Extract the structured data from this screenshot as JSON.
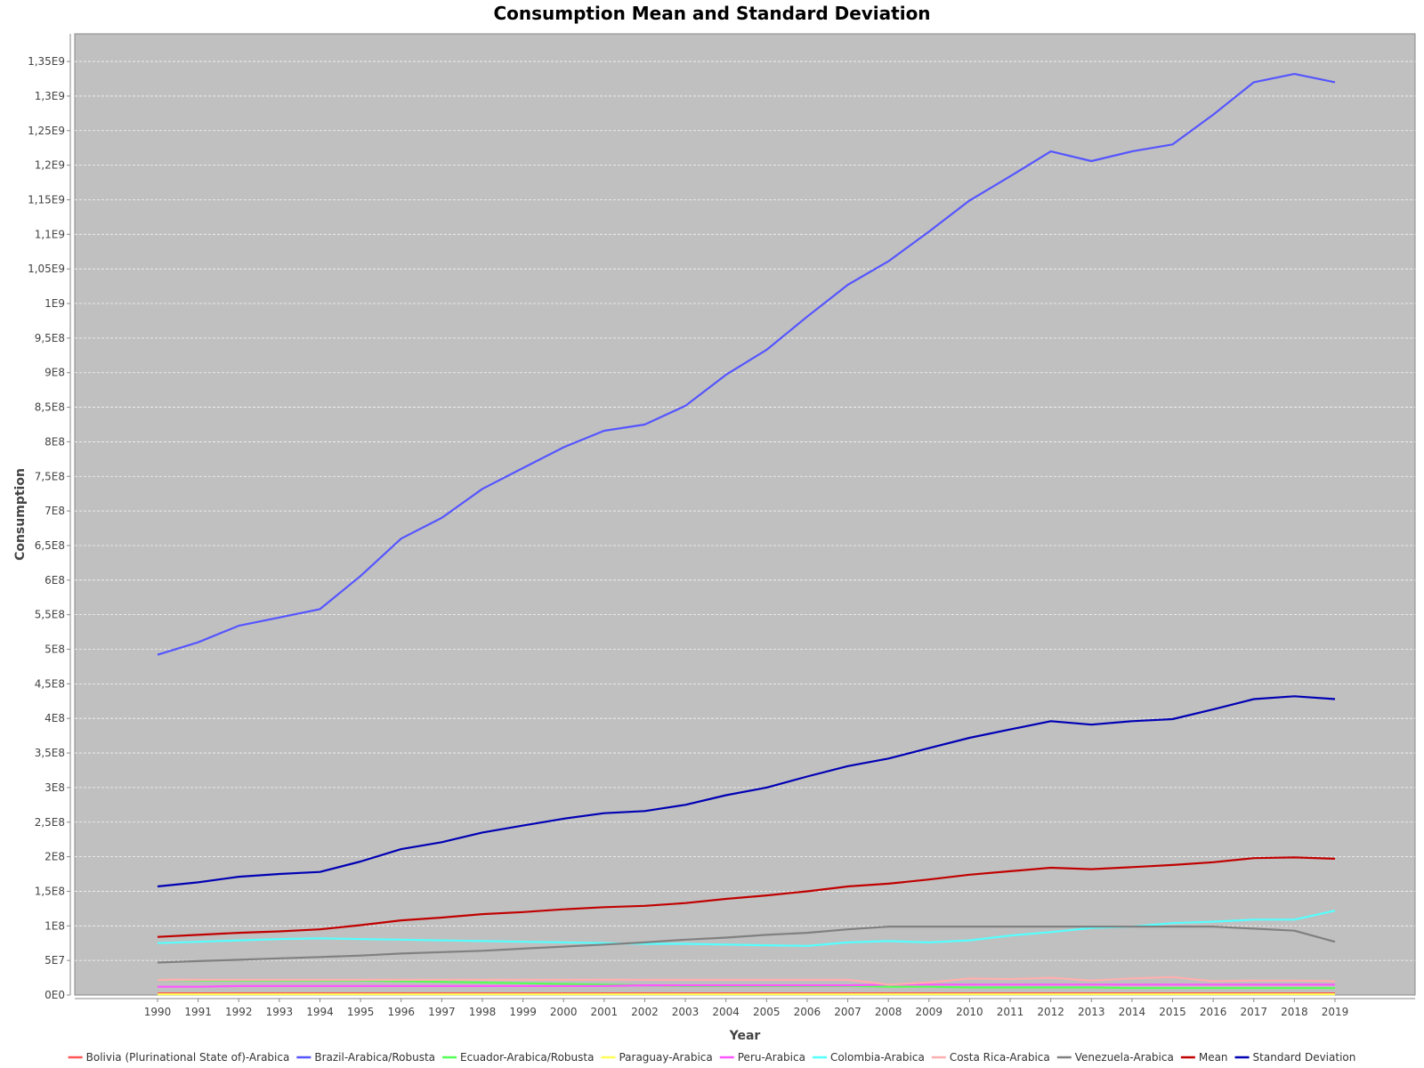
{
  "chart_data": {
    "type": "line",
    "title": "Consumption Mean and Standard Deviation",
    "xlabel": "Year",
    "ylabel": "Consumption",
    "ylim": [
      0,
      1390000000
    ],
    "grid": true,
    "legend_position": "bottom",
    "plot_background": "#c0c0c0",
    "x": [
      "1990",
      "1991",
      "1992",
      "1993",
      "1994",
      "1995",
      "1996",
      "1997",
      "1998",
      "1999",
      "2000",
      "2001",
      "2002",
      "2003",
      "2004",
      "2005",
      "2006",
      "2007",
      "2008",
      "2009",
      "2010",
      "2011",
      "2012",
      "2013",
      "2014",
      "2015",
      "2016",
      "2017",
      "2018",
      "2019"
    ],
    "y_ticks": [
      {
        "value": 0,
        "label": "0E0"
      },
      {
        "value": 50000000,
        "label": "5E7"
      },
      {
        "value": 100000000,
        "label": "1E8"
      },
      {
        "value": 150000000,
        "label": "1,5E8"
      },
      {
        "value": 200000000,
        "label": "2E8"
      },
      {
        "value": 250000000,
        "label": "2,5E8"
      },
      {
        "value": 300000000,
        "label": "3E8"
      },
      {
        "value": 350000000,
        "label": "3,5E8"
      },
      {
        "value": 400000000,
        "label": "4E8"
      },
      {
        "value": 450000000,
        "label": "4,5E8"
      },
      {
        "value": 500000000,
        "label": "5E8"
      },
      {
        "value": 550000000,
        "label": "5,5E8"
      },
      {
        "value": 600000000,
        "label": "6E8"
      },
      {
        "value": 650000000,
        "label": "6,5E8"
      },
      {
        "value": 700000000,
        "label": "7E8"
      },
      {
        "value": 750000000,
        "label": "7,5E8"
      },
      {
        "value": 800000000,
        "label": "8E8"
      },
      {
        "value": 850000000,
        "label": "8,5E8"
      },
      {
        "value": 900000000,
        "label": "9E8"
      },
      {
        "value": 950000000,
        "label": "9,5E8"
      },
      {
        "value": 1000000000,
        "label": "1E9"
      },
      {
        "value": 1050000000,
        "label": "1,05E9"
      },
      {
        "value": 1100000000,
        "label": "1,1E9"
      },
      {
        "value": 1150000000,
        "label": "1,15E9"
      },
      {
        "value": 1200000000,
        "label": "1,2E9"
      },
      {
        "value": 1250000000,
        "label": "1,25E9"
      },
      {
        "value": 1300000000,
        "label": "1,3E9"
      },
      {
        "value": 1350000000,
        "label": "1,35E9"
      }
    ],
    "series": [
      {
        "name": "Bolivia (Plurinational State of)-Arabica",
        "color": "#ff5555",
        "values": [
          2500000,
          2500000,
          2500000,
          2500000,
          2500000,
          2500000,
          2500000,
          2500000,
          2500000,
          2500000,
          2500000,
          2500000,
          2500000,
          2500000,
          2500000,
          2500000,
          2500000,
          2500000,
          2500000,
          2500000,
          2500000,
          2500000,
          2500000,
          2500000,
          2500000,
          2500000,
          2500000,
          2500000,
          2500000,
          2500000
        ]
      },
      {
        "name": "Brazil-Arabica/Robusta",
        "color": "#5555ff",
        "values": [
          492000000,
          510000000,
          534000000,
          546000000,
          558000000,
          606000000,
          660000000,
          690000000,
          732000000,
          762000000,
          792000000,
          816000000,
          825000000,
          852000000,
          897000000,
          933000000,
          981000000,
          1027000000,
          1061000000,
          1104000000,
          1149000000,
          1184000000,
          1220000000,
          1206000000,
          1220000000,
          1230000000,
          1273000000,
          1320000000,
          1332000000,
          1320000000
        ]
      },
      {
        "name": "Ecuador-Arabica/Robusta",
        "color": "#55ff55",
        "values": [
          22000000,
          21000000,
          21000000,
          21000000,
          21000000,
          21000000,
          20000000,
          19000000,
          18000000,
          17000000,
          16000000,
          15000000,
          14000000,
          13000000,
          13000000,
          13000000,
          13000000,
          13000000,
          12000000,
          12000000,
          11000000,
          11000000,
          11000000,
          11000000,
          10000000,
          10000000,
          10000000,
          10000000,
          10000000,
          10000000
        ]
      },
      {
        "name": "Paraguay-Arabica",
        "color": "#ffff55",
        "values": [
          1000000,
          1000000,
          1000000,
          1000000,
          1000000,
          1000000,
          1000000,
          1000000,
          1000000,
          1000000,
          1000000,
          1000000,
          1000000,
          1000000,
          1000000,
          1000000,
          1000000,
          1000000,
          1000000,
          1000000,
          1000000,
          1000000,
          1000000,
          1000000,
          1000000,
          1000000,
          1000000,
          1000000,
          1000000,
          1000000
        ]
      },
      {
        "name": "Peru-Arabica",
        "color": "#ff55ff",
        "values": [
          12000000,
          12000000,
          13000000,
          13000000,
          13000000,
          13000000,
          13000000,
          13000000,
          13000000,
          13000000,
          13000000,
          13000000,
          14000000,
          14000000,
          14000000,
          14000000,
          14000000,
          14000000,
          15000000,
          15000000,
          15000000,
          15000000,
          15000000,
          15000000,
          15000000,
          15000000,
          15000000,
          15000000,
          15000000,
          15000000
        ]
      },
      {
        "name": "Colombia-Arabica",
        "color": "#55ffff",
        "values": [
          75000000,
          77000000,
          79000000,
          81000000,
          82000000,
          81000000,
          80000000,
          79000000,
          78000000,
          77000000,
          76000000,
          75000000,
          74000000,
          74000000,
          73000000,
          72000000,
          71000000,
          76000000,
          78000000,
          76000000,
          79000000,
          86000000,
          91000000,
          97000000,
          99000000,
          104000000,
          106000000,
          109000000,
          109000000,
          122000000
        ]
      },
      {
        "name": "Costa Rica-Arabica",
        "color": "#ffafaf",
        "values": [
          22000000,
          22000000,
          22000000,
          22000000,
          22000000,
          22000000,
          22000000,
          22000000,
          22000000,
          22000000,
          22000000,
          22000000,
          22000000,
          22000000,
          22000000,
          22000000,
          22000000,
          22000000,
          15000000,
          18000000,
          24000000,
          23000000,
          25000000,
          21000000,
          24000000,
          26000000,
          20000000,
          21000000,
          21000000,
          20000000
        ]
      },
      {
        "name": "Venezuela-Arabica",
        "color": "#808080",
        "values": [
          47000000,
          49000000,
          51000000,
          53000000,
          55000000,
          57000000,
          60000000,
          62000000,
          64000000,
          67000000,
          70000000,
          73000000,
          76000000,
          80000000,
          83000000,
          87000000,
          90000000,
          95000000,
          99000000,
          99000000,
          99000000,
          99000000,
          99000000,
          99000000,
          99000000,
          99000000,
          99000000,
          96000000,
          93000000,
          77000000
        ]
      },
      {
        "name": "Mean",
        "color": "#c00000",
        "values": [
          84000000,
          87000000,
          90000000,
          92000000,
          95000000,
          101000000,
          108000000,
          112000000,
          117000000,
          120000000,
          124000000,
          127000000,
          129000000,
          133000000,
          139000000,
          144000000,
          150000000,
          157000000,
          161000000,
          167000000,
          174000000,
          179000000,
          184000000,
          182000000,
          185000000,
          188000000,
          192000000,
          198000000,
          199000000,
          197000000
        ]
      },
      {
        "name": "Standard Deviation",
        "color": "#0000b4",
        "values": [
          157000000,
          163000000,
          171000000,
          175000000,
          178000000,
          193000000,
          211000000,
          221000000,
          235000000,
          245000000,
          255000000,
          263000000,
          266000000,
          275000000,
          289000000,
          300000000,
          316000000,
          331000000,
          342000000,
          357000000,
          372000000,
          384000000,
          396000000,
          391000000,
          396000000,
          399000000,
          413000000,
          428000000,
          432000000,
          428000000
        ]
      }
    ]
  }
}
